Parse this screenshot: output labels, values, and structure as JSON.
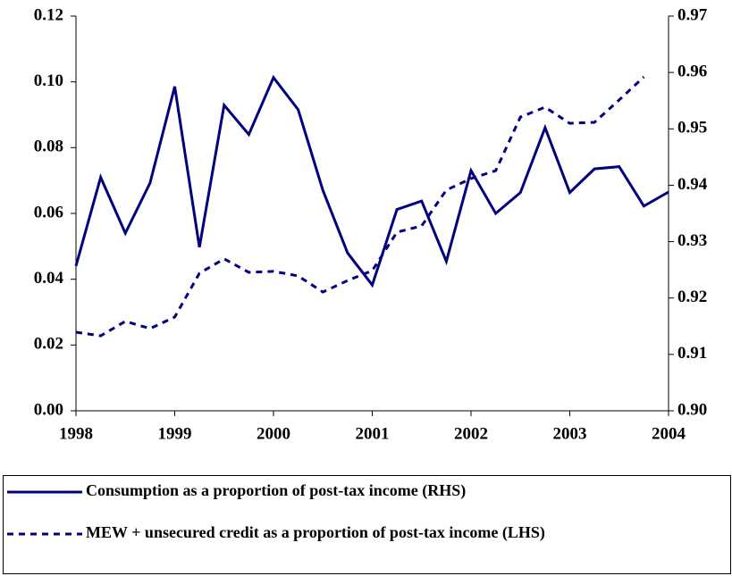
{
  "chart_data": {
    "type": "line",
    "x": [
      1998,
      1998.25,
      1998.5,
      1998.75,
      1999,
      1999.25,
      1999.5,
      1999.75,
      2000,
      2000.25,
      2000.5,
      2000.75,
      2001,
      2001.25,
      2001.5,
      2001.75,
      2002,
      2002.25,
      2002.5,
      2002.75,
      2003,
      2003.25,
      2003.5,
      2003.75,
      2004
    ],
    "xlim": [
      1998,
      2004
    ],
    "xticks": [
      1998,
      1999,
      2000,
      2001,
      2002,
      2003,
      2004
    ],
    "ylim": [
      0,
      0.12
    ],
    "yticks": [
      {
        "value": 0,
        "label": "0.00"
      },
      0.02,
      0.04,
      0.06,
      0.08,
      {
        "value": 0.1,
        "label": "0.10"
      },
      0.12
    ],
    "y2lim": [
      0.9,
      0.97
    ],
    "y2ticks": [
      {
        "value": 0.9,
        "label": "0.90"
      },
      0.91,
      0.92,
      0.93,
      0.94,
      0.95,
      0.96,
      0.97
    ],
    "series": [
      {
        "name": "Consumption as a proportion of post-tax income (RHS)",
        "color": "#000080",
        "dash": "solid",
        "axis": "y2",
        "values": [
          0.9257,
          0.9414,
          0.9315,
          0.9404,
          0.9575,
          0.929,
          0.9542,
          0.949,
          0.9591,
          0.9534,
          0.9391,
          0.928,
          0.9223,
          0.9357,
          0.9372,
          0.9265,
          0.9426,
          0.935,
          0.9387,
          0.9502,
          0.9387,
          0.9429,
          0.9433,
          0.9363,
          0.9388
        ]
      },
      {
        "name": "MEW + unsecured credit as a proportion of post-tax income (LHS)",
        "color": "#000080",
        "dash": "dashed",
        "axis": "y",
        "values": [
          0.0239,
          0.0228,
          0.0272,
          0.025,
          0.0285,
          0.0418,
          0.0462,
          0.0421,
          0.0424,
          0.041,
          0.0361,
          0.0396,
          0.0426,
          0.0543,
          0.0562,
          0.0671,
          0.0706,
          0.073,
          0.0893,
          0.0923,
          0.0874,
          0.0877,
          0.0945,
          0.1015,
          null
        ]
      }
    ],
    "legend": "bottom"
  }
}
